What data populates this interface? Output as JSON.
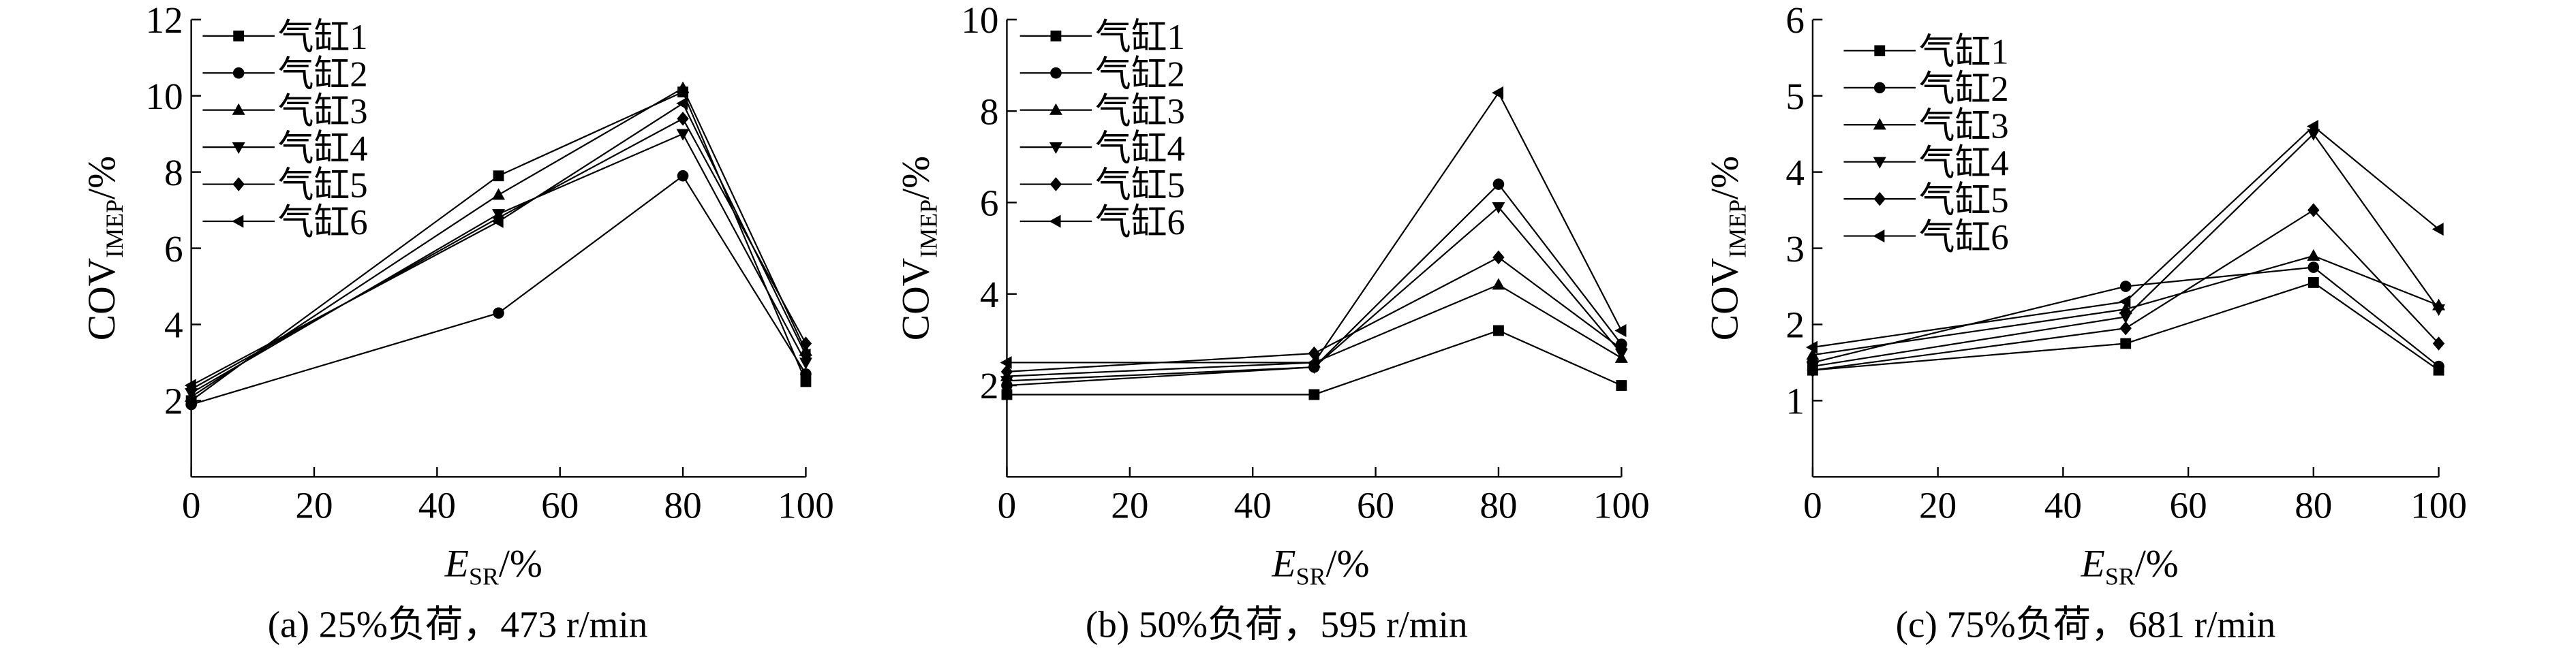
{
  "chart_data": [
    {
      "type": "line",
      "caption": "(a) 25%负荷，473 r/min",
      "xlabel_main": "E",
      "xlabel_sub": "SR",
      "xlabel_unit": "/%",
      "ylabel_main": "COV",
      "ylabel_sub": "IMEP",
      "ylabel_unit": "/%",
      "xlim": [
        0,
        100
      ],
      "ylim": [
        0,
        12
      ],
      "xticks": [
        0,
        20,
        40,
        60,
        80,
        100
      ],
      "yticks": [
        2,
        4,
        6,
        8,
        10,
        12
      ],
      "grid": false,
      "legend_position": "top-left",
      "x": [
        0,
        50,
        80,
        100
      ],
      "series": [
        {
          "name": "气缸1",
          "marker": "square",
          "values": [
            2.0,
            7.9,
            10.1,
            2.5
          ]
        },
        {
          "name": "气缸2",
          "marker": "circle",
          "values": [
            1.9,
            4.3,
            7.9,
            2.7
          ]
        },
        {
          "name": "气缸3",
          "marker": "triangle-up",
          "values": [
            2.1,
            7.4,
            10.2,
            3.3
          ]
        },
        {
          "name": "气缸4",
          "marker": "triangle-down",
          "values": [
            2.2,
            6.9,
            9.0,
            3.0
          ]
        },
        {
          "name": "气缸5",
          "marker": "diamond",
          "values": [
            2.3,
            6.8,
            9.4,
            3.5
          ]
        },
        {
          "name": "气缸6",
          "marker": "triangle-left",
          "values": [
            2.4,
            6.7,
            9.8,
            3.2
          ]
        }
      ]
    },
    {
      "type": "line",
      "caption": "(b) 50%负荷，595 r/min",
      "xlabel_main": "E",
      "xlabel_sub": "SR",
      "xlabel_unit": "/%",
      "ylabel_main": "COV",
      "ylabel_sub": "IMEP",
      "ylabel_unit": "/%",
      "xlim": [
        0,
        100
      ],
      "ylim": [
        0,
        10
      ],
      "xticks": [
        0,
        20,
        40,
        60,
        80,
        100
      ],
      "yticks": [
        2,
        4,
        6,
        8,
        10
      ],
      "grid": false,
      "legend_position": "top-left",
      "x": [
        0,
        50,
        80,
        100
      ],
      "series": [
        {
          "name": "气缸1",
          "marker": "square",
          "values": [
            1.8,
            1.8,
            3.2,
            2.0
          ]
        },
        {
          "name": "气缸2",
          "marker": "circle",
          "values": [
            2.0,
            2.4,
            6.4,
            2.9
          ]
        },
        {
          "name": "气缸3",
          "marker": "triangle-up",
          "values": [
            2.2,
            2.5,
            4.2,
            2.6
          ]
        },
        {
          "name": "气缸4",
          "marker": "triangle-down",
          "values": [
            2.1,
            2.4,
            5.9,
            2.7
          ]
        },
        {
          "name": "气缸5",
          "marker": "diamond",
          "values": [
            2.3,
            2.7,
            4.8,
            2.8
          ]
        },
        {
          "name": "气缸6",
          "marker": "triangle-left",
          "values": [
            2.5,
            2.5,
            8.4,
            3.2
          ]
        }
      ]
    },
    {
      "type": "line",
      "caption": "(c) 75%负荷，681 r/min",
      "xlabel_main": "E",
      "xlabel_sub": "SR",
      "xlabel_unit": "/%",
      "ylabel_main": "COV",
      "ylabel_sub": "IMEP",
      "ylabel_unit": "/%",
      "xlim": [
        0,
        100
      ],
      "ylim": [
        0,
        6
      ],
      "xticks": [
        0,
        20,
        40,
        60,
        80,
        100
      ],
      "yticks": [
        1,
        2,
        3,
        4,
        5,
        6
      ],
      "grid": false,
      "legend_position": "top-left",
      "x": [
        0,
        50,
        80,
        100
      ],
      "series": [
        {
          "name": "气缸1",
          "marker": "square",
          "values": [
            1.4,
            1.75,
            2.55,
            1.4
          ]
        },
        {
          "name": "气缸2",
          "marker": "circle",
          "values": [
            1.5,
            2.5,
            2.75,
            1.45
          ]
        },
        {
          "name": "气缸3",
          "marker": "triangle-up",
          "values": [
            1.6,
            2.2,
            2.9,
            2.25
          ]
        },
        {
          "name": "气缸4",
          "marker": "triangle-down",
          "values": [
            1.45,
            2.1,
            4.5,
            2.2
          ]
        },
        {
          "name": "气缸5",
          "marker": "diamond",
          "values": [
            1.4,
            1.95,
            3.5,
            1.75
          ]
        },
        {
          "name": "气缸6",
          "marker": "triangle-left",
          "values": [
            1.7,
            2.3,
            4.6,
            3.25
          ]
        }
      ]
    }
  ]
}
